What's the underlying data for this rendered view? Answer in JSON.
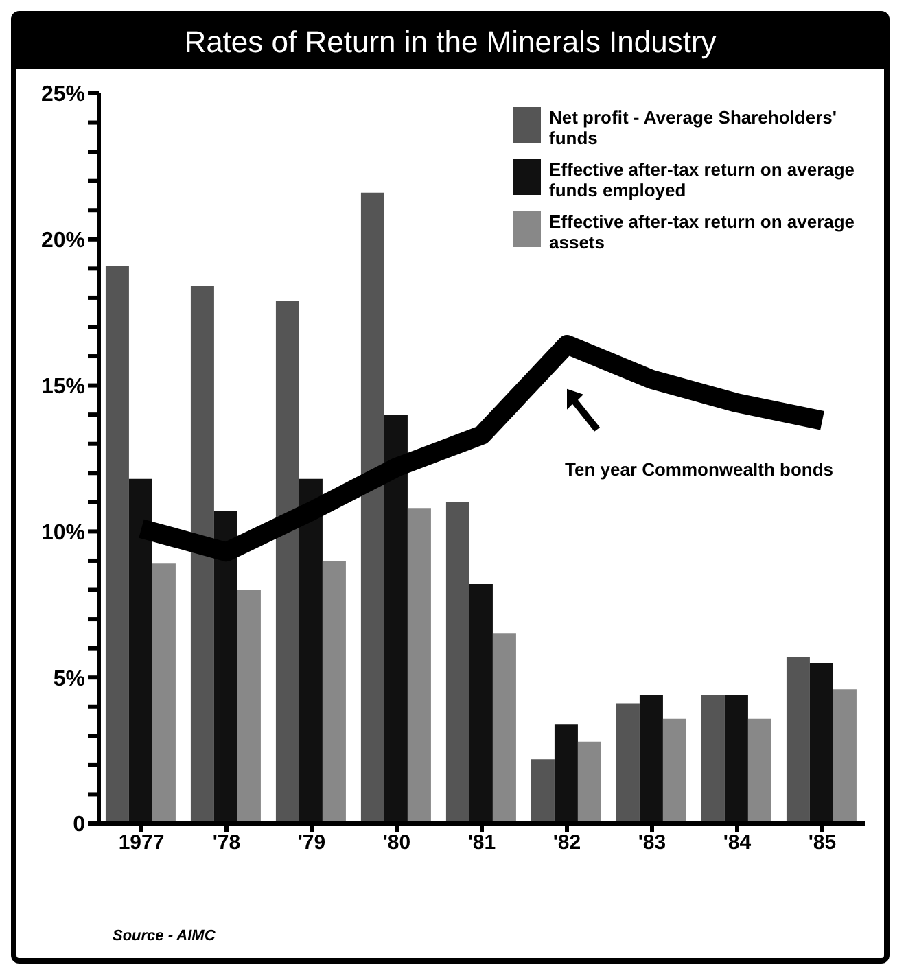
{
  "chart_data": {
    "type": "bar",
    "title": "Rates of Return in the Minerals Industry",
    "categories": [
      "1977",
      "'78",
      "'79",
      "'80",
      "'81",
      "'82",
      "'83",
      "'84",
      "'85"
    ],
    "series": [
      {
        "name": "Net profit - Average Shareholders' funds",
        "color": "#555555",
        "values": [
          19.1,
          18.4,
          17.9,
          21.6,
          11.0,
          2.2,
          4.1,
          4.4,
          5.7
        ]
      },
      {
        "name": "Effective after-tax return on average funds employed",
        "color": "#111111",
        "values": [
          11.8,
          10.7,
          11.8,
          14.0,
          8.2,
          3.4,
          4.4,
          4.4,
          5.5
        ]
      },
      {
        "name": "Effective after-tax return on average assets",
        "color": "#888888",
        "values": [
          8.9,
          8.0,
          9.0,
          10.8,
          6.5,
          2.8,
          3.6,
          3.6,
          4.6
        ]
      },
      {
        "name": "Ten year Commonwealth bonds",
        "type": "line",
        "color": "#000000",
        "values": [
          10.1,
          9.3,
          10.7,
          12.2,
          13.3,
          16.4,
          15.2,
          14.4,
          13.8
        ]
      }
    ],
    "ylim": [
      0,
      25
    ],
    "yticks": [
      0,
      {
        "value": 1,
        "label": null
      },
      {
        "value": 2,
        "label": null
      },
      {
        "value": 3,
        "label": null
      },
      {
        "value": 4,
        "label": null
      },
      {
        "value": 5,
        "label": "5%"
      },
      {
        "value": 6,
        "label": null
      },
      {
        "value": 7,
        "label": null
      },
      {
        "value": 8,
        "label": null
      },
      {
        "value": 9,
        "label": null
      },
      {
        "value": 10,
        "label": "10%"
      },
      {
        "value": 11,
        "label": null
      },
      {
        "value": 12,
        "label": null
      },
      {
        "value": 13,
        "label": null
      },
      {
        "value": 14,
        "label": null
      },
      {
        "value": 15,
        "label": "15%"
      },
      {
        "value": 16,
        "label": null
      },
      {
        "value": 17,
        "label": null
      },
      {
        "value": 18,
        "label": null
      },
      {
        "value": 19,
        "label": null
      },
      {
        "value": 20,
        "label": "20%"
      },
      {
        "value": 21,
        "label": null
      },
      {
        "value": 22,
        "label": null
      },
      {
        "value": 23,
        "label": null
      },
      {
        "value": 24,
        "label": null
      },
      {
        "value": 25,
        "label": "25%"
      }
    ],
    "grid": false,
    "legend": "top right",
    "marker": "none",
    "line_style": "solid",
    "annotations": [
      "Source - AIMC"
    ]
  }
}
